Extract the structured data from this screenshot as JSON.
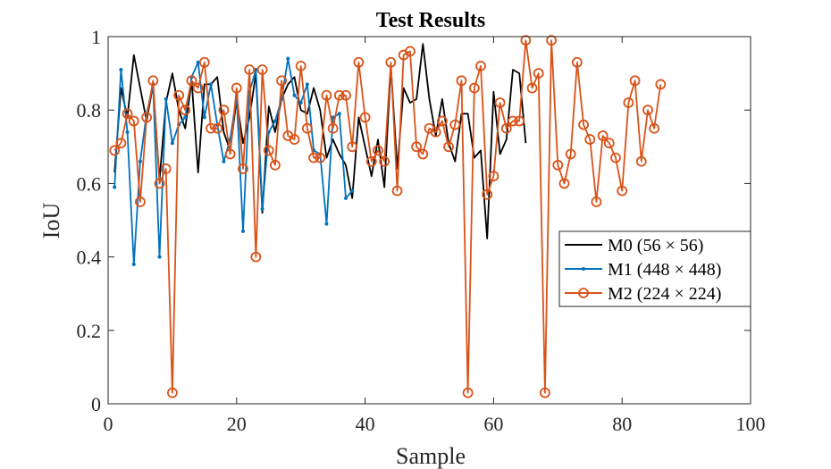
{
  "chart_data": {
    "type": "line",
    "title": "Test Results",
    "xlabel": "Sample",
    "ylabel": "IoU",
    "xlim": [
      0,
      100
    ],
    "ylim": [
      0,
      1
    ],
    "xticks": [
      0,
      20,
      40,
      60,
      80,
      100
    ],
    "yticks": [
      0,
      0.2,
      0.4,
      0.6,
      0.8,
      1
    ],
    "ytick_labels": [
      "0",
      "0.2",
      "0.4",
      "0.6",
      "0.8",
      "1"
    ],
    "legend_position": "right, middle",
    "series": [
      {
        "name": "M0 (56 × 56)",
        "color": "#000000",
        "marker": "none",
        "x": [
          1,
          2,
          3,
          4,
          5,
          6,
          7,
          8,
          9,
          10,
          11,
          12,
          13,
          14,
          15,
          16,
          17,
          18,
          19,
          20,
          21,
          22,
          23,
          24,
          25,
          26,
          27,
          28,
          29,
          30,
          31,
          32,
          33,
          34,
          35,
          36,
          37,
          38,
          39,
          40,
          41,
          42,
          43,
          44,
          45,
          46,
          47,
          48,
          49,
          50,
          51,
          52,
          53,
          54,
          55,
          56,
          57,
          58,
          59,
          60,
          61,
          62,
          63,
          64,
          65
        ],
        "values": [
          0.63,
          0.86,
          0.78,
          0.95,
          0.86,
          0.77,
          0.87,
          0.61,
          0.82,
          0.9,
          0.8,
          0.75,
          0.88,
          0.63,
          0.87,
          0.87,
          0.89,
          0.74,
          0.69,
          0.83,
          0.71,
          0.78,
          0.9,
          0.52,
          0.81,
          0.74,
          0.83,
          0.87,
          0.89,
          0.8,
          0.79,
          0.86,
          0.8,
          0.67,
          0.72,
          0.68,
          0.65,
          0.56,
          0.78,
          0.7,
          0.62,
          0.72,
          0.59,
          0.92,
          0.64,
          0.86,
          0.82,
          0.83,
          0.98,
          0.83,
          0.73,
          0.83,
          0.71,
          0.66,
          0.79,
          0.79,
          0.67,
          0.69,
          0.45,
          0.85,
          0.68,
          0.72,
          0.91,
          0.9,
          0.71
        ]
      },
      {
        "name": "M1 (448 × 448)",
        "color": "#0072BD",
        "marker": "point",
        "x": [
          1,
          2,
          3,
          4,
          5,
          6,
          7,
          8,
          9,
          10,
          11,
          12,
          13,
          14,
          15,
          16,
          17,
          18,
          19,
          20,
          21,
          22,
          23,
          24,
          25,
          26,
          27,
          28,
          29,
          30,
          31,
          32,
          33,
          34,
          35,
          36,
          37,
          38
        ],
        "values": [
          0.59,
          0.91,
          0.74,
          0.38,
          0.66,
          0.79,
          0.87,
          0.4,
          0.83,
          0.71,
          0.76,
          0.78,
          0.89,
          0.93,
          0.78,
          0.87,
          0.76,
          0.66,
          0.72,
          0.84,
          0.47,
          0.85,
          0.91,
          0.53,
          0.74,
          0.77,
          0.83,
          0.94,
          0.84,
          0.82,
          0.87,
          0.69,
          0.68,
          0.49,
          0.78,
          0.79,
          0.56,
          0.58
        ]
      },
      {
        "name": "M2 (224 × 224)",
        "color": "#D95319",
        "marker": "circle",
        "x": [
          1,
          2,
          3,
          4,
          5,
          6,
          7,
          8,
          9,
          10,
          11,
          12,
          13,
          14,
          15,
          16,
          17,
          18,
          19,
          20,
          21,
          22,
          23,
          24,
          25,
          26,
          27,
          28,
          29,
          30,
          31,
          32,
          33,
          34,
          35,
          36,
          37,
          38,
          39,
          40,
          41,
          42,
          43,
          44,
          45,
          46,
          47,
          48,
          49,
          50,
          51,
          52,
          53,
          54,
          55,
          56,
          57,
          58,
          59,
          60,
          61,
          62,
          63,
          64,
          65,
          66,
          67,
          68,
          69,
          70,
          71,
          72,
          73,
          74,
          75,
          76,
          77,
          78,
          79,
          80,
          81,
          82,
          83,
          84,
          85,
          86
        ],
        "values": [
          0.69,
          0.71,
          0.79,
          0.77,
          0.55,
          0.78,
          0.88,
          0.6,
          0.64,
          0.03,
          0.84,
          0.8,
          0.88,
          0.86,
          0.93,
          0.75,
          0.75,
          0.8,
          0.68,
          0.86,
          0.64,
          0.91,
          0.4,
          0.91,
          0.69,
          0.65,
          0.88,
          0.73,
          0.72,
          0.92,
          0.75,
          0.67,
          0.67,
          0.84,
          0.75,
          0.84,
          0.84,
          0.7,
          0.93,
          0.78,
          0.66,
          0.69,
          0.66,
          0.93,
          0.58,
          0.95,
          0.96,
          0.7,
          0.68,
          0.75,
          0.74,
          0.77,
          0.7,
          0.76,
          0.88,
          0.03,
          0.86,
          0.92,
          0.57,
          0.62,
          0.82,
          0.75,
          0.77,
          0.77,
          0.99,
          0.86,
          0.9,
          0.03,
          0.99,
          0.65,
          0.6,
          0.68,
          0.93,
          0.76,
          0.72,
          0.55,
          0.73,
          0.71,
          0.67,
          0.58,
          0.82,
          0.88,
          0.66,
          0.8,
          0.75,
          0.87
        ]
      }
    ]
  }
}
